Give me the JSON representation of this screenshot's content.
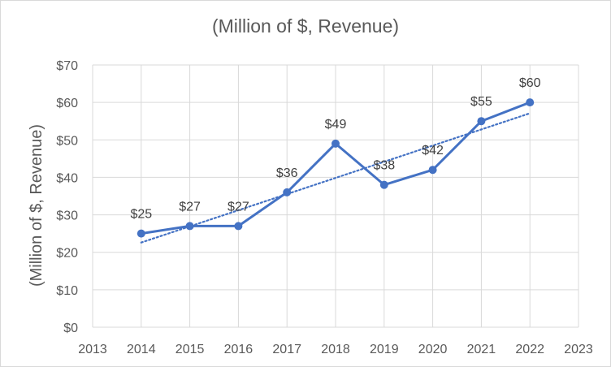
{
  "chart_data": {
    "type": "line",
    "title": "(Million of $,  Revenue)",
    "xlabel": "",
    "ylabel": "(Million of $, Revenue)",
    "x_ticks": [
      "2013",
      "2014",
      "2015",
      "2016",
      "2017",
      "2018",
      "2019",
      "2020",
      "2021",
      "2022",
      "2023"
    ],
    "y_ticks": [
      "$0",
      "$10",
      "$20",
      "$30",
      "$40",
      "$50",
      "$60",
      "$70"
    ],
    "xlim": [
      2013,
      2023
    ],
    "ylim": [
      0,
      70
    ],
    "grid": true,
    "series": [
      {
        "name": "Revenue",
        "color": "#4472c4",
        "x": [
          2014,
          2015,
          2016,
          2017,
          2018,
          2019,
          2020,
          2021,
          2022
        ],
        "values": [
          25,
          27,
          27,
          36,
          49,
          38,
          42,
          55,
          60
        ],
        "data_labels": [
          "$25",
          "$27",
          "$27",
          "$36",
          "$49",
          "$38",
          "$42",
          "$55",
          "$60"
        ]
      }
    ],
    "trendline": {
      "type": "linear",
      "style": "dotted",
      "color": "#4472c4",
      "x": [
        2014,
        2022
      ],
      "values": [
        22.6,
        57.1
      ]
    }
  }
}
